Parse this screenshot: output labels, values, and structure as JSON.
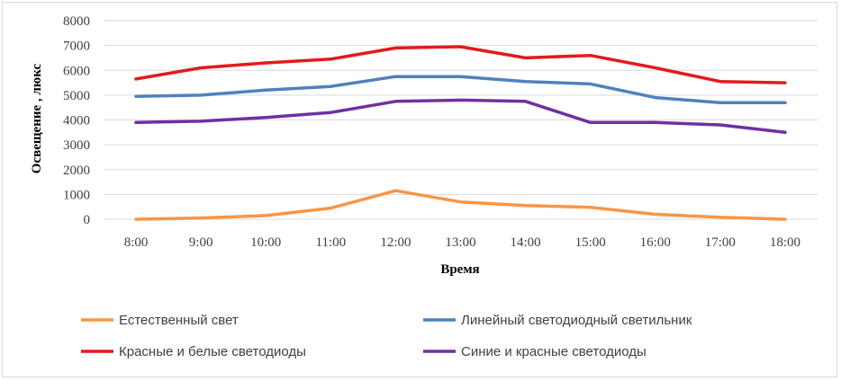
{
  "chart_data": {
    "type": "line",
    "title": "",
    "xlabel": "Время",
    "ylabel": "Освещение , люкс",
    "ylim": [
      0,
      8000
    ],
    "yticks": [
      0,
      1000,
      2000,
      3000,
      4000,
      5000,
      6000,
      7000,
      8000
    ],
    "grid": true,
    "legend_position": "bottom",
    "categories": [
      "8:00",
      "9:00",
      "10:00",
      "11:00",
      "12:00",
      "13:00",
      "14:00",
      "15:00",
      "16:00",
      "17:00",
      "18:00"
    ],
    "series": [
      {
        "name": "Естественный свет",
        "color": "#f79646",
        "values": [
          0,
          50,
          150,
          450,
          1150,
          700,
          550,
          480,
          200,
          80,
          0
        ]
      },
      {
        "name": "Линейный светодиодный светильник",
        "color": "#4f81bd",
        "values": [
          4950,
          5000,
          5200,
          5350,
          5750,
          5750,
          5550,
          5450,
          4900,
          4700,
          4700
        ]
      },
      {
        "name": "Красные и белые светодиоды",
        "color": "#e31a1c",
        "values": [
          5650,
          6100,
          6300,
          6450,
          6900,
          6950,
          6500,
          6600,
          6100,
          5550,
          5500
        ]
      },
      {
        "name": "Синие и красные светодиоды",
        "color": "#7030a0",
        "values": [
          3900,
          3950,
          4100,
          4300,
          4750,
          4800,
          4750,
          3900,
          3900,
          3800,
          3500
        ]
      }
    ]
  }
}
